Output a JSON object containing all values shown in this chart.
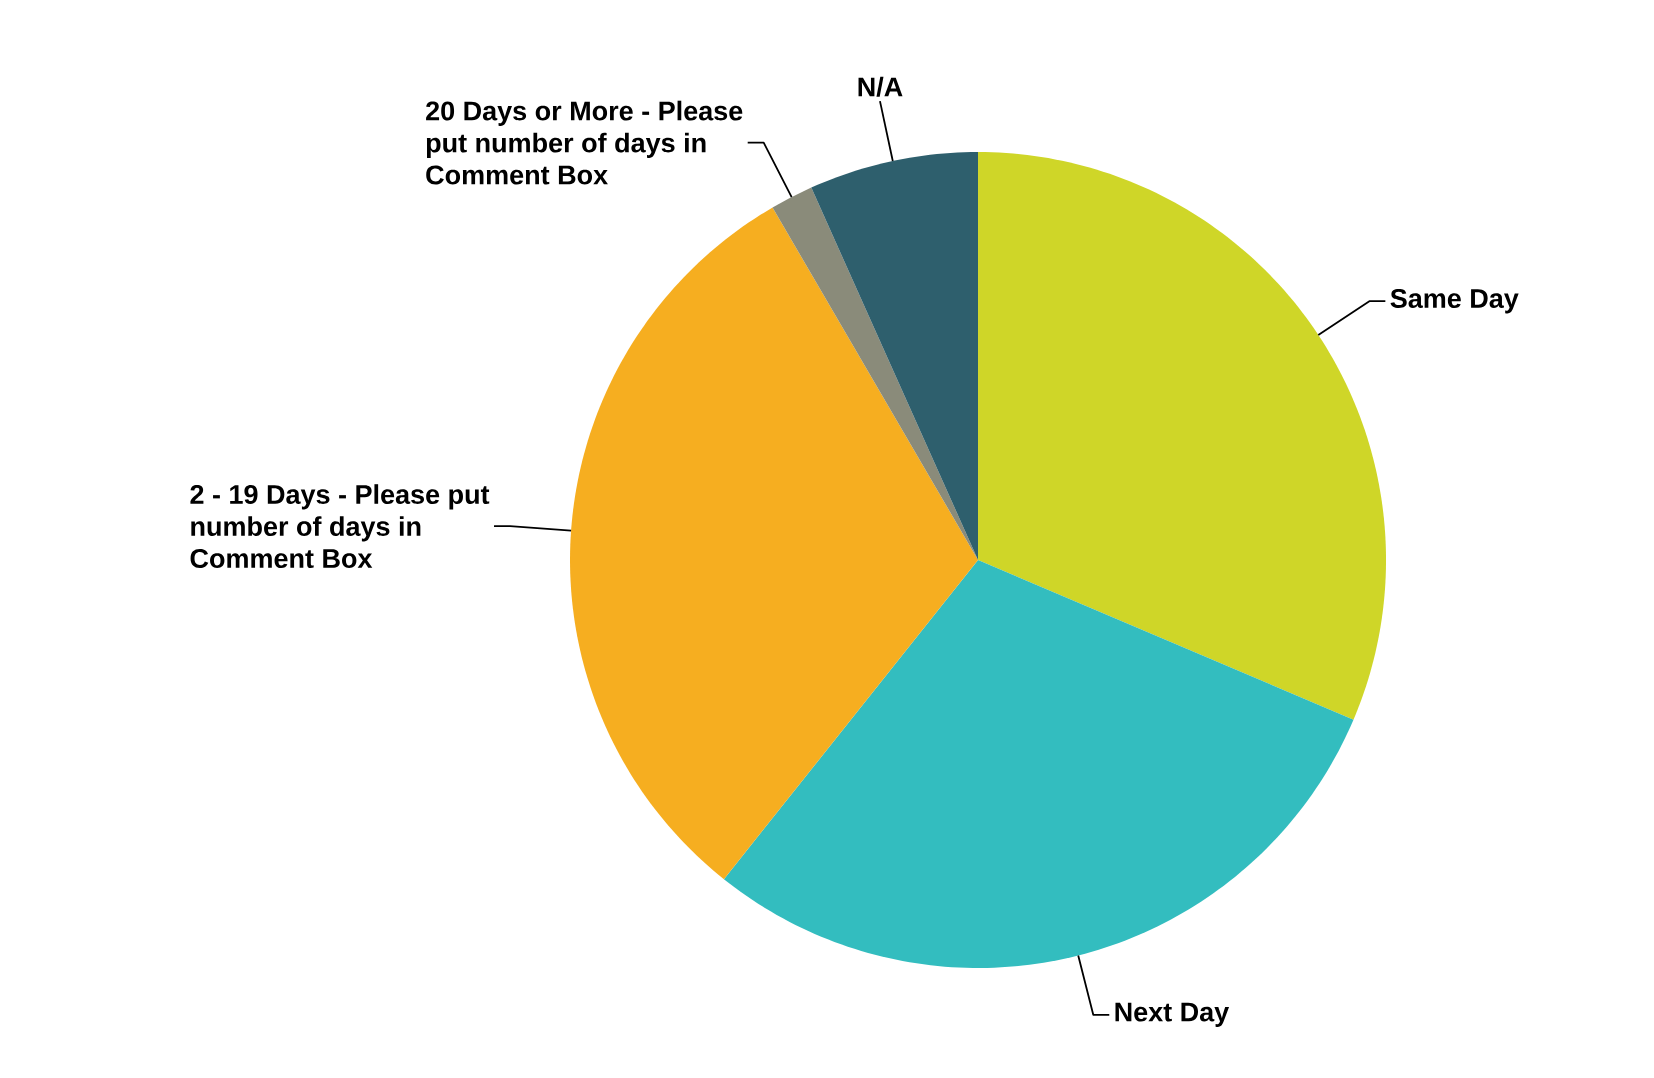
{
  "chart_data": {
    "type": "pie",
    "categories": [
      "Same Day",
      "Next Day",
      "2 - 19 Days - Please put number of days in Comment Box",
      "20 Days or More - Please put number of days in Comment Box",
      "N/A"
    ],
    "values": [
      31.4,
      29.3,
      30.9,
      1.7,
      6.7
    ],
    "colors": [
      "#cfd628",
      "#33bdbf",
      "#f6ae20",
      "#8a8b7a",
      "#2e5f6d"
    ],
    "legend": false
  }
}
